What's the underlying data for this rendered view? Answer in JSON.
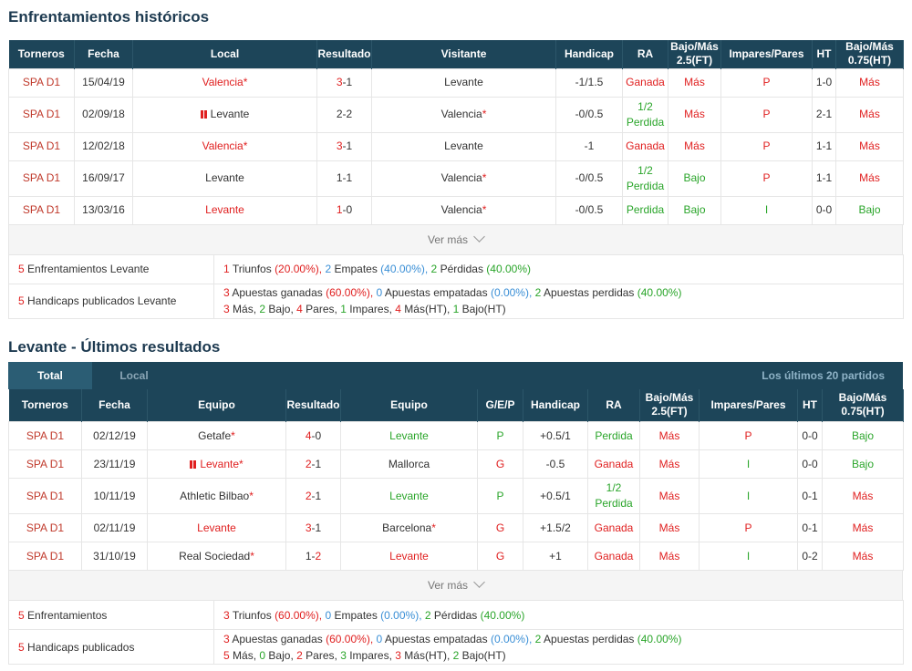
{
  "h2h": {
    "title": "Enfrentamientos históricos",
    "headers": [
      "Torneros",
      "Fecha",
      "Local",
      "Resultado",
      "Visitante",
      "Handicap",
      "RA",
      "Bajo/Más 2.5(FT)",
      "Impares/Pares",
      "HT",
      "Bajo/Más 0.75(HT)"
    ],
    "rows": [
      {
        "league": "SPA D1",
        "date": "15/04/19",
        "home": "Valencia",
        "home_star": "*",
        "home_color": "red",
        "home_flag": false,
        "score_a": "3",
        "score_sep": "-",
        "score_b": "1",
        "score_a_color": "red",
        "score_b_color": "",
        "away": "Levante",
        "away_star": "",
        "away_flag": false,
        "handicap": "-1/1.5",
        "ra": "Ganada",
        "ra2": "",
        "ra_color": "red",
        "ou": "Más",
        "ou_color": "red",
        "oe": "P",
        "oe_color": "red",
        "ht": "1-0",
        "ht_ou": "Más",
        "ht_ou_color": "red"
      },
      {
        "league": "SPA D1",
        "date": "02/09/18",
        "home": "Levante",
        "home_star": "",
        "home_color": "",
        "home_flag": true,
        "score_a": "2",
        "score_sep": "-",
        "score_b": "2",
        "score_a_color": "",
        "score_b_color": "",
        "away": "Valencia",
        "away_star": "*",
        "away_flag": false,
        "handicap": "-0/0.5",
        "ra": "1/2",
        "ra2": "Perdida",
        "ra_color": "green",
        "ou": "Más",
        "ou_color": "red",
        "oe": "P",
        "oe_color": "red",
        "ht": "2-1",
        "ht_ou": "Más",
        "ht_ou_color": "red"
      },
      {
        "league": "SPA D1",
        "date": "12/02/18",
        "home": "Valencia",
        "home_star": "*",
        "home_color": "red",
        "home_flag": false,
        "score_a": "3",
        "score_sep": "-",
        "score_b": "1",
        "score_a_color": "red",
        "score_b_color": "",
        "away": "Levante",
        "away_star": "",
        "away_flag": false,
        "handicap": "-1",
        "ra": "Ganada",
        "ra2": "",
        "ra_color": "red",
        "ou": "Más",
        "ou_color": "red",
        "oe": "P",
        "oe_color": "red",
        "ht": "1-1",
        "ht_ou": "Más",
        "ht_ou_color": "red"
      },
      {
        "league": "SPA D1",
        "date": "16/09/17",
        "home": "Levante",
        "home_star": "",
        "home_color": "",
        "home_flag": false,
        "score_a": "1",
        "score_sep": "-",
        "score_b": "1",
        "score_a_color": "",
        "score_b_color": "",
        "away": "Valencia",
        "away_star": "*",
        "away_flag": false,
        "handicap": "-0/0.5",
        "ra": "1/2",
        "ra2": "Perdida",
        "ra_color": "green",
        "ou": "Bajo",
        "ou_color": "green",
        "oe": "P",
        "oe_color": "red",
        "ht": "1-1",
        "ht_ou": "Más",
        "ht_ou_color": "red"
      },
      {
        "league": "SPA D1",
        "date": "13/03/16",
        "home": "Levante",
        "home_star": "",
        "home_color": "red",
        "home_flag": false,
        "score_a": "1",
        "score_sep": "-",
        "score_b": "0",
        "score_a_color": "red",
        "score_b_color": "",
        "away": "Valencia",
        "away_star": "*",
        "away_flag": false,
        "handicap": "-0/0.5",
        "ra": "Perdida",
        "ra2": "",
        "ra_color": "green",
        "ou": "Bajo",
        "ou_color": "green",
        "oe": "I",
        "oe_color": "green",
        "ht": "0-0",
        "ht_ou": "Bajo",
        "ht_ou_color": "green"
      }
    ],
    "vermas": "Ver más",
    "summary1_label": "Enfrentamientos Levante",
    "summary1_count": "5",
    "summary1": {
      "w": "1",
      "w_txt": "Triunfos",
      "w_pct": "(20.00%),",
      "d": "2",
      "d_txt": "Empates",
      "d_pct": "(40.00%),",
      "l": "2",
      "l_txt": "Pérdidas",
      "l_pct": "(40.00%)"
    },
    "summary2_label": "Handicaps publicados Levante",
    "summary2_count": "5",
    "summary2_line1": {
      "w": "3",
      "w_txt": "Apuestas ganadas",
      "w_pct": "(60.00%),",
      "d": "0",
      "d_txt": "Apuestas empatadas",
      "d_pct": "(0.00%),",
      "l": "2",
      "l_txt": "Apuestas perdidas",
      "l_pct": "(40.00%)"
    },
    "summary2_line2": {
      "a": "3",
      "a_txt": "Más,",
      "b": "2",
      "b_txt": "Bajo,",
      "c": "4",
      "c_txt": "Pares,",
      "d": "1",
      "d_txt": "Impares,",
      "e": "4",
      "e_txt": "Más(HT),",
      "f": "1",
      "f_txt": "Bajo(HT)"
    }
  },
  "recent": {
    "title": "Levante - Últimos resultados",
    "tabs": [
      "Total",
      "Local"
    ],
    "right_label": "Los últimos 20 partidos",
    "headers": [
      "Torneros",
      "Fecha",
      "Equipo",
      "Resultado",
      "Equipo",
      "G/E/P",
      "Handicap",
      "RA",
      "Bajo/Más 2.5(FT)",
      "Impares/Pares",
      "HT",
      "Bajo/Más 0.75(HT)"
    ],
    "rows": [
      {
        "league": "SPA D1",
        "date": "02/12/19",
        "home": "Getafe",
        "home_star": "*",
        "home_color": "",
        "home_flag": false,
        "score_a": "4",
        "score_sep": "-",
        "score_b": "0",
        "score_a_color": "red",
        "score_b_color": "",
        "away": "Levante",
        "away_star": "",
        "away_color": "green",
        "gep": "P",
        "gep_color": "green",
        "handicap": "+0.5/1",
        "ra": "Perdida",
        "ra2": "",
        "ra_color": "green",
        "ou": "Más",
        "ou_color": "red",
        "oe": "P",
        "oe_color": "red",
        "ht": "0-0",
        "ht_ou": "Bajo",
        "ht_ou_color": "green"
      },
      {
        "league": "SPA D1",
        "date": "23/11/19",
        "home": "Levante",
        "home_star": "*",
        "home_color": "red",
        "home_flag": true,
        "score_a": "2",
        "score_sep": "-",
        "score_b": "1",
        "score_a_color": "red",
        "score_b_color": "",
        "away": "Mallorca",
        "away_star": "",
        "away_color": "",
        "gep": "G",
        "gep_color": "red",
        "handicap": "-0.5",
        "ra": "Ganada",
        "ra2": "",
        "ra_color": "red",
        "ou": "Más",
        "ou_color": "red",
        "oe": "I",
        "oe_color": "green",
        "ht": "0-0",
        "ht_ou": "Bajo",
        "ht_ou_color": "green"
      },
      {
        "league": "SPA D1",
        "date": "10/11/19",
        "home": "Athletic Bilbao",
        "home_star": "*",
        "home_color": "",
        "home_flag": false,
        "score_a": "2",
        "score_sep": "-",
        "score_b": "1",
        "score_a_color": "red",
        "score_b_color": "",
        "away": "Levante",
        "away_star": "",
        "away_color": "green",
        "gep": "P",
        "gep_color": "green",
        "handicap": "+0.5/1",
        "ra": "1/2",
        "ra2": "Perdida",
        "ra_color": "green",
        "ou": "Más",
        "ou_color": "red",
        "oe": "I",
        "oe_color": "green",
        "ht": "0-1",
        "ht_ou": "Más",
        "ht_ou_color": "red"
      },
      {
        "league": "SPA D1",
        "date": "02/11/19",
        "home": "Levante",
        "home_star": "",
        "home_color": "red",
        "home_flag": false,
        "score_a": "3",
        "score_sep": "-",
        "score_b": "1",
        "score_a_color": "red",
        "score_b_color": "",
        "away": "Barcelona",
        "away_star": "*",
        "away_color": "",
        "gep": "G",
        "gep_color": "red",
        "handicap": "+1.5/2",
        "ra": "Ganada",
        "ra2": "",
        "ra_color": "red",
        "ou": "Más",
        "ou_color": "red",
        "oe": "P",
        "oe_color": "red",
        "ht": "0-1",
        "ht_ou": "Más",
        "ht_ou_color": "red"
      },
      {
        "league": "SPA D1",
        "date": "31/10/19",
        "home": "Real Sociedad",
        "home_star": "*",
        "home_color": "",
        "home_flag": false,
        "score_a": "1",
        "score_sep": "-",
        "score_b": "2",
        "score_a_color": "",
        "score_b_color": "red",
        "away": "Levante",
        "away_star": "",
        "away_color": "red",
        "gep": "G",
        "gep_color": "red",
        "handicap": "+1",
        "ra": "Ganada",
        "ra2": "",
        "ra_color": "red",
        "ou": "Más",
        "ou_color": "red",
        "oe": "I",
        "oe_color": "green",
        "ht": "0-2",
        "ht_ou": "Más",
        "ht_ou_color": "red"
      }
    ],
    "vermas": "Ver más",
    "summary1_label": "Enfrentamientos",
    "summary1_count": "5",
    "summary1": {
      "w": "3",
      "w_txt": "Triunfos",
      "w_pct": "(60.00%),",
      "d": "0",
      "d_txt": "Empates",
      "d_pct": "(0.00%),",
      "l": "2",
      "l_txt": "Pérdidas",
      "l_pct": "(40.00%)"
    },
    "summary2_label": "Handicaps publicados",
    "summary2_count": "5",
    "summary2_line1": {
      "w": "3",
      "w_txt": "Apuestas ganadas",
      "w_pct": "(60.00%),",
      "d": "0",
      "d_txt": "Apuestas empatadas",
      "d_pct": "(0.00%),",
      "l": "2",
      "l_txt": "Apuestas perdidas",
      "l_pct": "(40.00%)"
    },
    "summary2_line2": {
      "a": "5",
      "a_txt": "Más,",
      "b": "0",
      "b_txt": "Bajo,",
      "c": "2",
      "c_txt": "Pares,",
      "d": "3",
      "d_txt": "Impares,",
      "e": "3",
      "e_txt": "Más(HT),",
      "f": "2",
      "f_txt": "Bajo(HT)"
    }
  },
  "colors": {
    "header": "#1d4559",
    "red": "#e02020",
    "green": "#2aa52a",
    "blue": "#3a8fd6"
  }
}
